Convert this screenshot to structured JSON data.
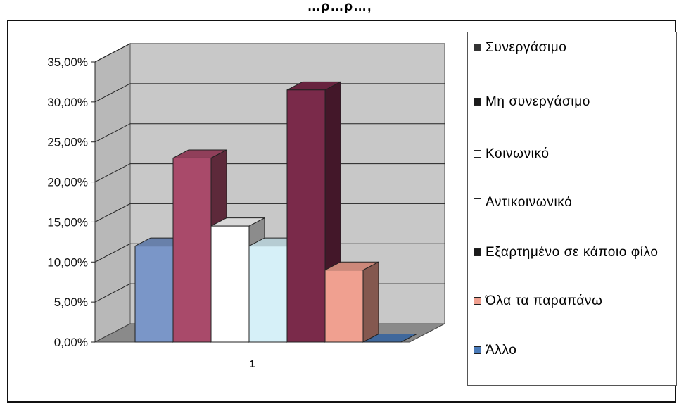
{
  "title": "…ρ…ρ…,",
  "chart_data": {
    "type": "bar",
    "style": "3d-clustered-column",
    "categories": [
      "1"
    ],
    "series": [
      {
        "name": "Συνεργάσιμο",
        "values": [
          0.12
        ],
        "color": "#7a96c8"
      },
      {
        "name": "Μη συνεργάσιμο",
        "values": [
          0.23
        ],
        "color": "#a94a6a"
      },
      {
        "name": "Κοινωνικό",
        "values": [
          0.145
        ],
        "color": "#ffffff"
      },
      {
        "name": "Αντικοινωνικό",
        "values": [
          0.12
        ],
        "color": "#d6f0f8"
      },
      {
        "name": "Εξαρτημένο σε κάποιο φίλο",
        "values": [
          0.315
        ],
        "color": "#7a2a4a"
      },
      {
        "name": "Όλα τα παραπάνω",
        "values": [
          0.09
        ],
        "color": "#f0a090"
      },
      {
        "name": "Άλλο",
        "values": [
          0.0
        ],
        "color": "#4a7ab8"
      }
    ],
    "ylim": [
      0,
      0.35
    ],
    "yticks": [
      "0,00%",
      "5,00%",
      "10,00%",
      "15,00%",
      "20,00%",
      "25,00%",
      "30,00%",
      "35,00%"
    ],
    "grid": true,
    "legend_position": "right",
    "wall_color": "#c8c8c8",
    "floor_color": "#8a8a8a"
  },
  "legend": {
    "items": [
      {
        "label": "Συνεργάσιμο",
        "color": "#333333"
      },
      {
        "label": "Μη συνεργάσιμο",
        "color": "#1a1a1a"
      },
      {
        "label": "Κοινωνικό",
        "color": "#ffffff"
      },
      {
        "label": "Αντικοινωνικό",
        "color": "#ffffff"
      },
      {
        "label": "Εξαρτημένο σε κάποιο φίλο",
        "color": "#1a1a1a"
      },
      {
        "label": "Όλα τα παραπάνω",
        "color": "#f0a090"
      },
      {
        "label": "Άλλο",
        "color": "#4a7ab8"
      }
    ]
  }
}
